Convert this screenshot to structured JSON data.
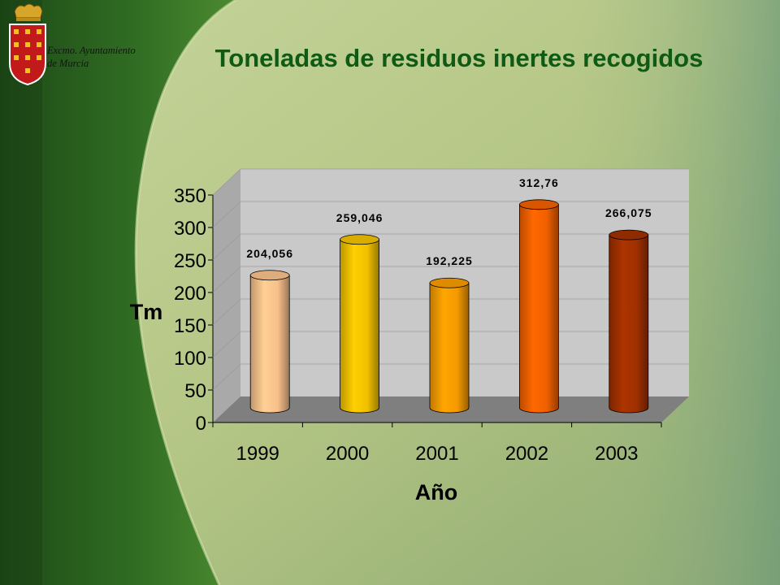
{
  "header": {
    "org_line1": "Excmo. Ayuntamiento",
    "org_line2": "de Murcia",
    "logo_icon": "murcia-coat-of-arms-icon"
  },
  "colors": {
    "title": "#0f5a14",
    "background": "#b9c98a",
    "plot_wall": "#c8c8c8",
    "plot_floor": "#808080"
  },
  "chart_data": {
    "type": "bar",
    "title": "Toneladas de residuos inertes recogidos",
    "xlabel": "Año",
    "ylabel": "Tm",
    "categories": [
      "1999",
      "2000",
      "2001",
      "2002",
      "2003"
    ],
    "values": [
      204.056,
      259.046,
      192.225,
      312.76,
      266.075
    ],
    "data_labels": [
      "204,056",
      "259,046",
      "192,225",
      "312,76",
      "266,075"
    ],
    "yticks": [
      "0",
      "50",
      "100",
      "150",
      "200",
      "250",
      "300",
      "350"
    ],
    "ylim": [
      0,
      350
    ],
    "bar_shape": "cylinder",
    "bar_colors": [
      "#f8c08a",
      "#f0c000",
      "#f59a00",
      "#f06000",
      "#a03000"
    ],
    "grid": false,
    "legend": "none"
  }
}
